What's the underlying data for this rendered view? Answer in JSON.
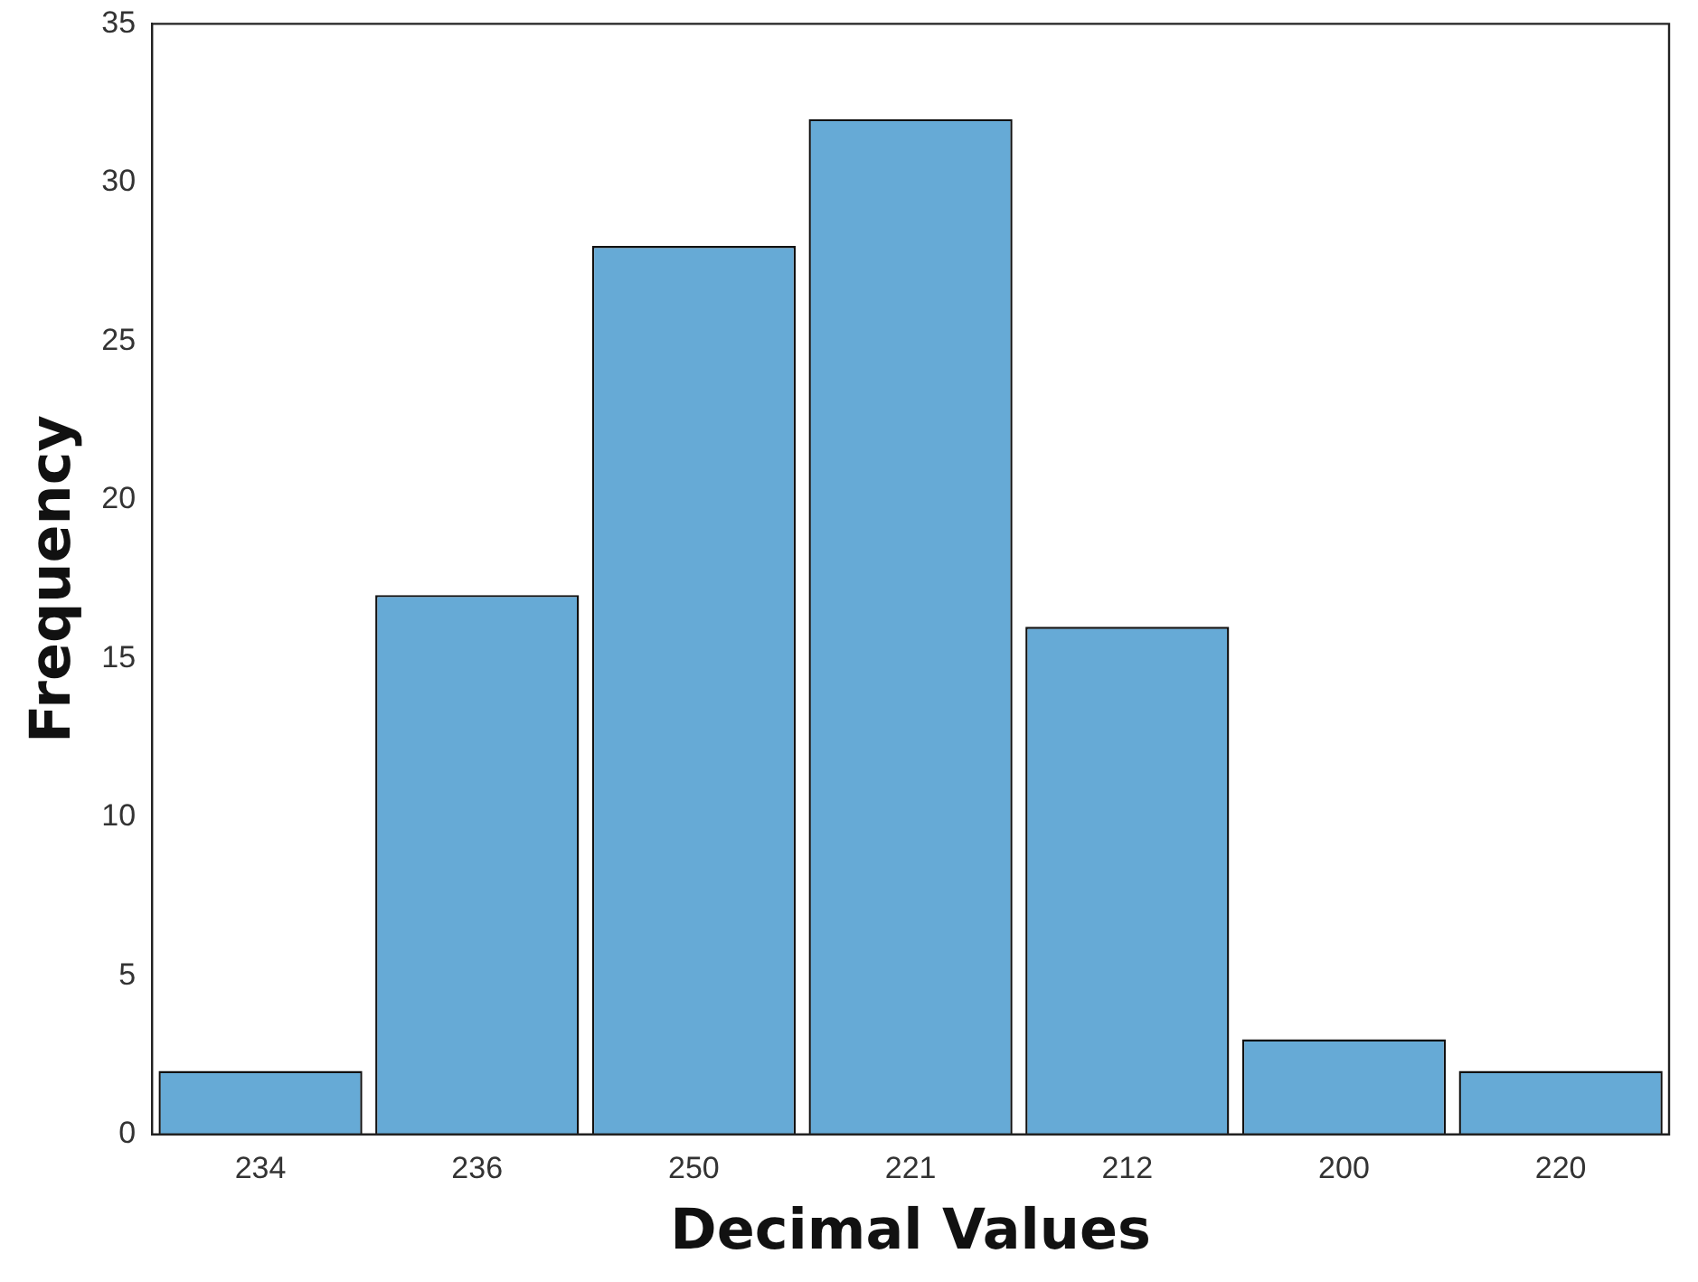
{
  "chart_data": {
    "type": "bar",
    "xlabel": "Decimal Values",
    "ylabel": "Frequency",
    "categories": [
      "234",
      "236",
      "250",
      "221",
      "212",
      "200",
      "220"
    ],
    "values": [
      2,
      17,
      28,
      32,
      16,
      3,
      2
    ],
    "color": "#66aad6",
    "ylim": [
      0,
      35
    ],
    "yticks": [
      0,
      5,
      10,
      15,
      20,
      25,
      30,
      35
    ],
    "grid": false,
    "legend": false
  }
}
